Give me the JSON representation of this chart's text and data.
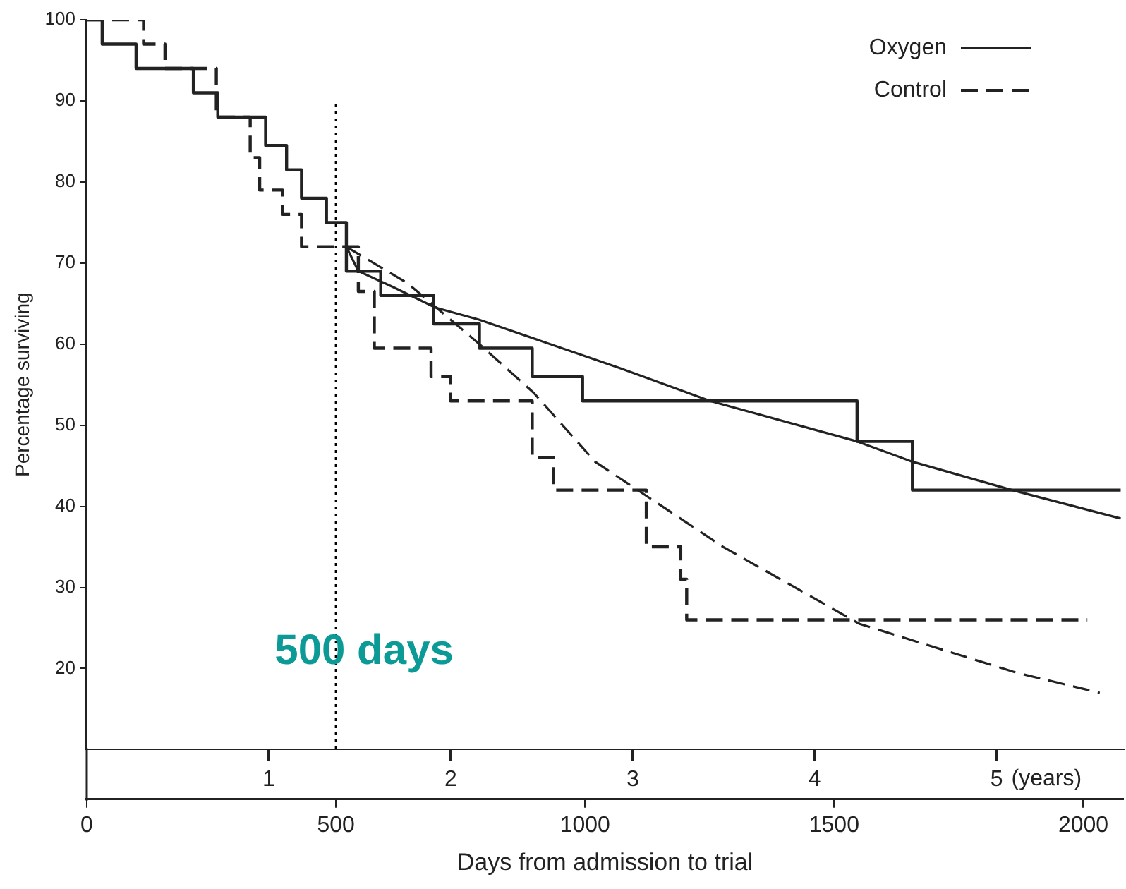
{
  "chart_data": {
    "type": "step",
    "xlabel": "Days from admission to trial",
    "ylabel": "Percentage surviving",
    "xlim": [
      0,
      2080
    ],
    "xticks": [
      0,
      500,
      1000,
      1500,
      2000
    ],
    "x2lim": [
      0,
      5.695
    ],
    "x2ticks": [
      1,
      2,
      3,
      4,
      5
    ],
    "x2label": "(years)",
    "ylim": [
      10,
      100
    ],
    "yticks": [
      20,
      30,
      40,
      50,
      60,
      70,
      80,
      90,
      100
    ],
    "grid": false,
    "legend": "top right",
    "marker": "none",
    "series": [
      {
        "name": "Oxygen",
        "line_style": "solid",
        "color": "#222222",
        "x": [
          0,
          31,
          99,
          214,
          263,
          359,
          401,
          431,
          481,
          521,
          590,
          696,
          788,
          894,
          995,
          1546,
          1657,
          2075
        ],
        "values": [
          100,
          97,
          94,
          91,
          88,
          84.5,
          81.5,
          78,
          75,
          69,
          66,
          62.5,
          59.5,
          56,
          53,
          48,
          42,
          42
        ]
      },
      {
        "name": "Control",
        "line_style": "dashed",
        "color": "#222222",
        "x": [
          0,
          114,
          157,
          260,
          328,
          347,
          393,
          431,
          545,
          577,
          691,
          730,
          894,
          937,
          1123,
          1192,
          1204,
          2008
        ],
        "values": [
          100,
          97,
          94,
          88,
          83,
          79,
          76,
          72,
          66.5,
          59.5,
          56,
          53,
          46,
          42,
          35,
          31,
          26,
          26
        ]
      },
      {
        "type": "line",
        "line_style": "solid",
        "color": "#222222",
        "x": [
          521,
          545,
          616,
          700,
          788,
          1072,
          1251,
          1546,
          1657,
          1857,
          2075
        ],
        "values": [
          72,
          69,
          67,
          64.5,
          63,
          57,
          53,
          48,
          45.5,
          42,
          38.5
        ]
      },
      {
        "type": "line",
        "line_style": "dashed",
        "color": "#222222",
        "x": [
          521,
          644,
          788,
          897,
          1020,
          1277,
          1551,
          1865,
          2033
        ],
        "values": [
          72,
          67.5,
          60,
          54,
          45.5,
          35,
          25.5,
          19.5,
          17
        ]
      }
    ],
    "ref_lines": [
      {
        "axis": "x",
        "value": 500,
        "label": "500 days",
        "line_style": "dotted"
      }
    ]
  }
}
